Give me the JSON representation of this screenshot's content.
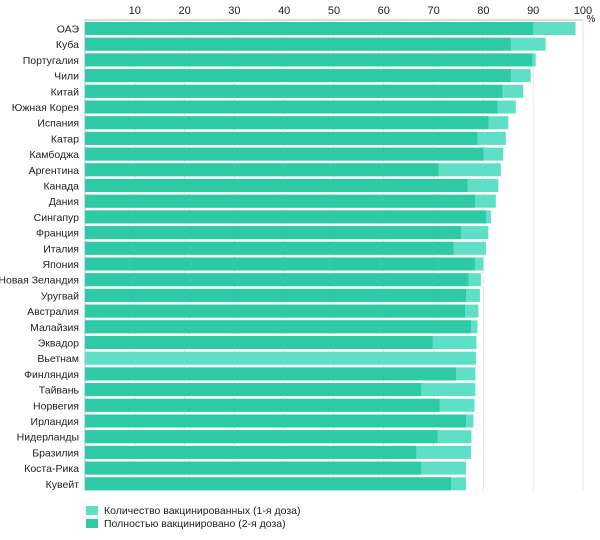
{
  "chart_data": {
    "type": "bar",
    "orientation": "horizontal",
    "unit": "%",
    "xlim": [
      0,
      100
    ],
    "ticks": [
      10,
      20,
      30,
      40,
      50,
      60,
      70,
      80,
      90,
      100
    ],
    "grid": true,
    "legend_position": "bottom-left",
    "categories": [
      "ОАЭ",
      "Куба",
      "Португалия",
      "Чили",
      "Китай",
      "Южная Корея",
      "Испания",
      "Катар",
      "Камбоджа",
      "Аргентина",
      "Канада",
      "Дания",
      "Сингапур",
      "Франция",
      "Италия",
      "Япония",
      "Новая Зеландия",
      "Уругвай",
      "Австралия",
      "Малайзия",
      "Эквадор",
      "Вьетнам",
      "Финляндия",
      "Тайвань",
      "Норвегия",
      "Ирландия",
      "Нидерланды",
      "Бразилия",
      "Коста-Рика",
      "Кувейт"
    ],
    "series": [
      {
        "name": "Количество вакцинированных (1-я доза)",
        "color": "#5fe0c6",
        "values": [
          98.5,
          92.5,
          90.5,
          89.5,
          88.0,
          86.5,
          85.0,
          84.5,
          84.0,
          83.5,
          83.0,
          82.5,
          81.5,
          81.0,
          80.5,
          80.0,
          79.5,
          79.3,
          79.0,
          78.8,
          78.6,
          78.5,
          78.4,
          78.4,
          78.2,
          78.0,
          77.6,
          77.5,
          76.5,
          76.5
        ]
      },
      {
        "name": "Полностью вакцинировано (2-я доза)",
        "color": "#2ecaa6",
        "values": [
          90.0,
          85.5,
          89.8,
          85.5,
          83.8,
          82.8,
          81.0,
          78.8,
          80.0,
          71.0,
          76.8,
          78.3,
          80.5,
          75.5,
          74.0,
          78.3,
          77.0,
          76.5,
          76.3,
          77.5,
          69.8,
          null,
          74.5,
          67.5,
          71.2,
          76.5,
          70.8,
          66.5,
          67.5,
          73.5
        ]
      }
    ]
  }
}
